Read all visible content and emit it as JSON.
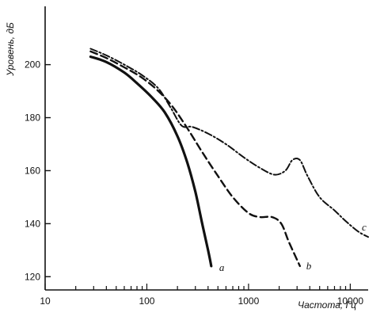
{
  "chart_data": {
    "type": "line",
    "title": "",
    "xlabel": "Частота, Гц",
    "ylabel": "Уровень, дБ",
    "x_scale": "log",
    "xlim": [
      10,
      15000
    ],
    "ylim": [
      115,
      222
    ],
    "x_ticks": [
      10,
      100,
      1000,
      10000
    ],
    "x_tick_labels": [
      "10",
      "100",
      "1000",
      "10000"
    ],
    "y_ticks": [
      120,
      140,
      160,
      180,
      200
    ],
    "y_tick_labels": [
      "120",
      "140",
      "160",
      "180",
      "200"
    ],
    "grid": false,
    "series": [
      {
        "name": "a",
        "style": "solid",
        "points": [
          [
            28,
            203
          ],
          [
            40,
            201
          ],
          [
            60,
            197
          ],
          [
            80,
            193
          ],
          [
            110,
            188
          ],
          [
            150,
            182
          ],
          [
            200,
            173
          ],
          [
            250,
            163
          ],
          [
            300,
            152
          ],
          [
            350,
            140
          ],
          [
            400,
            130
          ],
          [
            430,
            124
          ]
        ]
      },
      {
        "name": "b",
        "style": "dashed",
        "points": [
          [
            28,
            205
          ],
          [
            40,
            202.5
          ],
          [
            60,
            199
          ],
          [
            90,
            195
          ],
          [
            130,
            190
          ],
          [
            180,
            184
          ],
          [
            250,
            176
          ],
          [
            350,
            167
          ],
          [
            500,
            158
          ],
          [
            700,
            150
          ],
          [
            1000,
            144
          ],
          [
            1300,
            142.5
          ],
          [
            1700,
            142.5
          ],
          [
            2100,
            140
          ],
          [
            2500,
            133
          ],
          [
            3200,
            124
          ]
        ]
      },
      {
        "name": "c",
        "style": "dash-dot",
        "points": [
          [
            28,
            206
          ],
          [
            40,
            203.5
          ],
          [
            60,
            200
          ],
          [
            90,
            196
          ],
          [
            130,
            191
          ],
          [
            170,
            184
          ],
          [
            220,
            177
          ],
          [
            280,
            176.5
          ],
          [
            400,
            174
          ],
          [
            600,
            170
          ],
          [
            900,
            165
          ],
          [
            1300,
            161
          ],
          [
            1800,
            158.5
          ],
          [
            2300,
            160
          ],
          [
            2700,
            164
          ],
          [
            3200,
            164
          ],
          [
            3800,
            158
          ],
          [
            5000,
            150
          ],
          [
            7000,
            145
          ],
          [
            9000,
            141
          ],
          [
            12000,
            137
          ],
          [
            15000,
            135
          ]
        ]
      }
    ]
  }
}
